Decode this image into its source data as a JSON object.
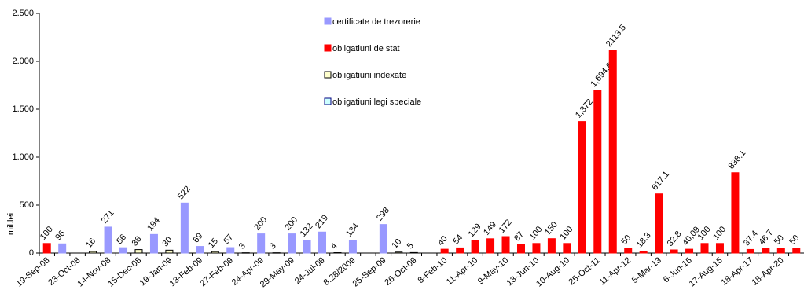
{
  "chart_data": {
    "type": "bar",
    "y_label": "mil.lei",
    "categories": [
      "19-Sep-08",
      null,
      "23-Oct-08",
      null,
      "14-Nov-08",
      null,
      "15-Dec-08",
      null,
      "19-Jan-09",
      null,
      "13-Feb-09",
      null,
      "27-Feb-09",
      null,
      "24-Apr-09",
      null,
      "29-May-09",
      null,
      "24-Jul-09",
      null,
      "8.28/2009",
      null,
      "25-Sep-09",
      null,
      "26-Oct-09",
      null,
      "8-Feb-10",
      null,
      "11-Apr-10",
      null,
      "9-May-10",
      null,
      "13-Jun-10",
      null,
      "10-Aug-10",
      null,
      "25-Oct-11",
      null,
      "11-Apr-12",
      null,
      "5-Mar-13",
      null,
      "6-Jun-15",
      null,
      "17-Aug-15",
      null,
      "18-Apr-17",
      null,
      "18-Apr-20",
      null
    ],
    "series": [
      {
        "name": "certificate de trezorerie",
        "color": "#9999ff",
        "border": "#9999ff",
        "values": [
          null,
          96,
          null,
          null,
          271,
          56,
          null,
          194,
          null,
          522,
          69,
          null,
          57,
          null,
          200,
          null,
          200,
          132,
          219,
          null,
          134,
          null,
          298,
          null,
          null,
          null,
          null,
          null,
          null,
          null,
          null,
          null,
          null,
          null,
          null,
          null,
          null,
          null,
          null,
          null,
          null,
          null,
          null,
          null,
          null,
          null,
          null,
          null,
          null,
          null
        ]
      },
      {
        "name": "obligatiuni de stat",
        "color": "#ff0000",
        "border": "#ff0000",
        "values": [
          100,
          null,
          null,
          null,
          null,
          null,
          null,
          null,
          null,
          null,
          null,
          null,
          null,
          null,
          null,
          null,
          null,
          null,
          null,
          null,
          null,
          null,
          null,
          null,
          null,
          null,
          40,
          54,
          129,
          149,
          172,
          87,
          100,
          150,
          100,
          1372,
          1694.6,
          2113.5,
          50,
          18.3,
          617.1,
          32.8,
          40.09,
          100,
          100,
          838.1,
          37.4,
          46.7,
          50,
          50
        ],
        "value_labels": [
          null,
          null,
          null,
          null,
          null,
          null,
          null,
          null,
          null,
          null,
          null,
          null,
          null,
          null,
          null,
          null,
          null,
          null,
          null,
          null,
          null,
          null,
          null,
          null,
          null,
          null,
          null,
          null,
          null,
          null,
          null,
          null,
          null,
          null,
          null,
          "1,372",
          "1,694.6",
          null,
          null,
          null,
          null,
          null,
          "40,09",
          null,
          null,
          null,
          null,
          null,
          null,
          null
        ]
      },
      {
        "name": "obligatiuni indexate",
        "color": "#ffffcc",
        "border": "#000000",
        "values": [
          null,
          null,
          null,
          16,
          null,
          null,
          36,
          null,
          30,
          null,
          null,
          15,
          null,
          3,
          null,
          3,
          null,
          null,
          null,
          4,
          null,
          null,
          null,
          10,
          5,
          null,
          null,
          null,
          null,
          null,
          null,
          null,
          null,
          null,
          null,
          null,
          null,
          null,
          null,
          null,
          null,
          null,
          null,
          null,
          null,
          null,
          null,
          null,
          null,
          null
        ]
      },
      {
        "name": "obligatiuni legi speciale",
        "color": "#ccffff",
        "border": "#000080",
        "values": [
          null,
          null,
          null,
          null,
          null,
          null,
          null,
          null,
          null,
          null,
          null,
          null,
          null,
          null,
          null,
          null,
          null,
          null,
          null,
          null,
          null,
          null,
          null,
          null,
          null,
          null,
          null,
          null,
          null,
          null,
          null,
          null,
          null,
          null,
          null,
          null,
          null,
          null,
          null,
          null,
          null,
          null,
          null,
          null,
          null,
          null,
          null,
          null,
          null,
          null
        ]
      }
    ],
    "ylim": [
      0,
      2500
    ],
    "yticks": [
      0,
      500,
      {
        "value": 1000,
        "label": "1.000"
      },
      {
        "value": 1500,
        "label": "1.500"
      },
      {
        "value": 2000,
        "label": "2.000"
      },
      {
        "value": 2500,
        "label": "2.500"
      }
    ],
    "grid": false,
    "legend": "top"
  }
}
